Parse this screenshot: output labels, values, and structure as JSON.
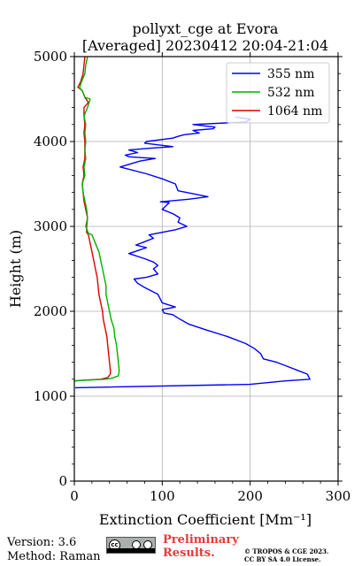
{
  "chart_data": {
    "type": "line",
    "title": "pollyxt_cge at Evora",
    "subtitle": "[Averaged] 20230412 20:04-21:04",
    "xlabel": "Extinction Coefficient [Mm⁻¹]",
    "ylabel": "Height (m)",
    "xlim": [
      0,
      300
    ],
    "ylim": [
      0,
      5000
    ],
    "x_ticks": [
      0,
      100,
      200,
      300
    ],
    "y_ticks": [
      0,
      1000,
      2000,
      3000,
      4000,
      5000
    ],
    "grid": true,
    "legend_position": "top-right",
    "series": [
      {
        "name": "355 nm",
        "color": "#0000ff",
        "points": [
          [
            1,
            1100
          ],
          [
            200,
            1140
          ],
          [
            240,
            1180
          ],
          [
            268,
            1200
          ],
          [
            265,
            1260
          ],
          [
            255,
            1300
          ],
          [
            240,
            1360
          ],
          [
            230,
            1400
          ],
          [
            215,
            1440
          ],
          [
            212,
            1500
          ],
          [
            205,
            1560
          ],
          [
            195,
            1620
          ],
          [
            175,
            1700
          ],
          [
            150,
            1780
          ],
          [
            130,
            1850
          ],
          [
            118,
            1920
          ],
          [
            112,
            1960
          ],
          [
            102,
            1980
          ],
          [
            100,
            2020
          ],
          [
            115,
            2050
          ],
          [
            100,
            2100
          ],
          [
            95,
            2200
          ],
          [
            80,
            2280
          ],
          [
            72,
            2330
          ],
          [
            68,
            2380
          ],
          [
            82,
            2400
          ],
          [
            95,
            2440
          ],
          [
            90,
            2500
          ],
          [
            95,
            2540
          ],
          [
            90,
            2580
          ],
          [
            80,
            2620
          ],
          [
            62,
            2680
          ],
          [
            68,
            2700
          ],
          [
            82,
            2750
          ],
          [
            70,
            2780
          ],
          [
            80,
            2820
          ],
          [
            90,
            2860
          ],
          [
            85,
            2900
          ],
          [
            115,
            2960
          ],
          [
            128,
            3000
          ],
          [
            118,
            3050
          ],
          [
            120,
            3100
          ],
          [
            112,
            3150
          ],
          [
            100,
            3200
          ],
          [
            108,
            3280
          ],
          [
            98,
            3290
          ],
          [
            130,
            3320
          ],
          [
            152,
            3350
          ],
          [
            118,
            3420
          ],
          [
            115,
            3500
          ],
          [
            100,
            3560
          ],
          [
            82,
            3620
          ],
          [
            52,
            3700
          ],
          [
            75,
            3770
          ],
          [
            92,
            3800
          ],
          [
            62,
            3820
          ],
          [
            58,
            3840
          ],
          [
            72,
            3870
          ],
          [
            62,
            3900
          ],
          [
            85,
            3920
          ],
          [
            112,
            3940
          ],
          [
            80,
            3980
          ],
          [
            82,
            4000
          ],
          [
            112,
            4040
          ],
          [
            118,
            4060
          ],
          [
            125,
            4080
          ],
          [
            142,
            4100
          ],
          [
            135,
            4130
          ],
          [
            158,
            4150
          ],
          [
            160,
            4170
          ],
          [
            135,
            4200
          ],
          [
            195,
            4230
          ],
          [
            200,
            4260
          ],
          [
            195,
            4270
          ],
          [
            183,
            4290
          ]
        ]
      },
      {
        "name": "532 nm",
        "color": "#00b000",
        "points": [
          [
            0,
            1180
          ],
          [
            15,
            1190
          ],
          [
            35,
            1200
          ],
          [
            42,
            1210
          ],
          [
            50,
            1240
          ],
          [
            51,
            1300
          ],
          [
            50,
            1400
          ],
          [
            49,
            1500
          ],
          [
            48,
            1600
          ],
          [
            46,
            1700
          ],
          [
            45,
            1800
          ],
          [
            42,
            1900
          ],
          [
            40,
            2000
          ],
          [
            38,
            2100
          ],
          [
            36,
            2200
          ],
          [
            36,
            2300
          ],
          [
            34,
            2400
          ],
          [
            32,
            2500
          ],
          [
            30,
            2600
          ],
          [
            28,
            2700
          ],
          [
            24,
            2800
          ],
          [
            20,
            2900
          ],
          [
            16,
            2920
          ],
          [
            13,
            3000
          ],
          [
            15,
            3100
          ],
          [
            14,
            3200
          ],
          [
            12,
            3300
          ],
          [
            10,
            3400
          ],
          [
            9,
            3500
          ],
          [
            12,
            3600
          ],
          [
            11,
            3700
          ],
          [
            13,
            3800
          ],
          [
            12,
            3900
          ],
          [
            13,
            4000
          ],
          [
            12,
            4100
          ],
          [
            13,
            4200
          ],
          [
            11,
            4300
          ],
          [
            15,
            4400
          ],
          [
            18,
            4500
          ],
          [
            12,
            4520
          ],
          [
            9,
            4600
          ],
          [
            6,
            4630
          ],
          [
            8,
            4700
          ],
          [
            12,
            4800
          ],
          [
            13,
            4900
          ],
          [
            15,
            5000
          ]
        ]
      },
      {
        "name": "1064 nm",
        "color": "#dd0000",
        "points": [
          [
            0,
            1180
          ],
          [
            12,
            1190
          ],
          [
            30,
            1200
          ],
          [
            38,
            1220
          ],
          [
            41,
            1260
          ],
          [
            41,
            1300
          ],
          [
            40,
            1400
          ],
          [
            39,
            1500
          ],
          [
            38,
            1600
          ],
          [
            37,
            1700
          ],
          [
            35,
            1800
          ],
          [
            33,
            1900
          ],
          [
            32,
            2000
          ],
          [
            30,
            2100
          ],
          [
            28,
            2200
          ],
          [
            27,
            2300
          ],
          [
            26,
            2400
          ],
          [
            24,
            2500
          ],
          [
            22,
            2600
          ],
          [
            20,
            2700
          ],
          [
            18,
            2800
          ],
          [
            16,
            2900
          ],
          [
            14,
            2930
          ],
          [
            14,
            3000
          ],
          [
            15,
            3100
          ],
          [
            13,
            3200
          ],
          [
            11,
            3300
          ],
          [
            10,
            3400
          ],
          [
            9,
            3500
          ],
          [
            11,
            3600
          ],
          [
            10,
            3700
          ],
          [
            12,
            3800
          ],
          [
            12,
            3900
          ],
          [
            12,
            4000
          ],
          [
            11,
            4100
          ],
          [
            12,
            4200
          ],
          [
            11,
            4300
          ],
          [
            11,
            4400
          ],
          [
            16,
            4460
          ],
          [
            12,
            4520
          ],
          [
            9,
            4600
          ],
          [
            4,
            4640
          ],
          [
            7,
            4700
          ],
          [
            10,
            4800
          ],
          [
            11,
            4900
          ],
          [
            12,
            5000
          ]
        ]
      }
    ]
  },
  "footer": {
    "version": "Version: 3.6",
    "method": "Method: Raman",
    "license_badge": "cc",
    "preliminary_line1": "Preliminary",
    "preliminary_line2": "Results.",
    "copyright_line1": "© TROPOS & CGE 2023.",
    "copyright_line2": "CC BY SA 4.0 License."
  },
  "colors": {
    "grid": "#b0b0b0",
    "preliminary": "#e8393a",
    "badge_gray": "#aab0ad"
  }
}
